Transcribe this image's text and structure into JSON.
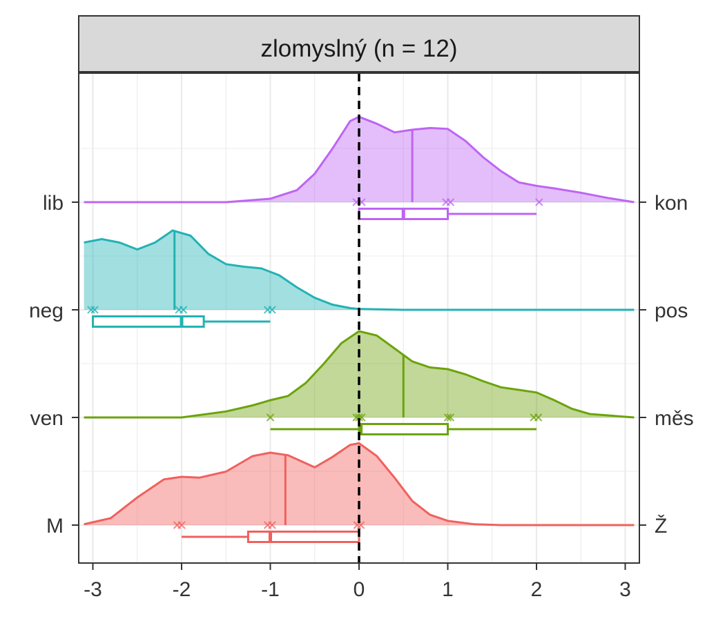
{
  "chart_data": {
    "type": "ridgeline-density-with-boxplots",
    "title": "zlomyslný (n = 12)",
    "xlabel": "",
    "ylabel": "",
    "xlim": [
      -3.1,
      3.1
    ],
    "x_ticks": [
      -3,
      -2,
      -1,
      0,
      1,
      2,
      3
    ],
    "x_tick_labels": [
      "-3",
      "-2",
      "-1",
      "0",
      "1",
      "2",
      "3"
    ],
    "reference_line_x": 0,
    "grid": true,
    "legend": "none",
    "series": [
      {
        "left_label": "M",
        "right_label": "Ž",
        "color": "#F0605D",
        "density": {
          "x": [
            -3.1,
            -2.8,
            -2.5,
            -2.2,
            -2.0,
            -1.8,
            -1.5,
            -1.2,
            -1.0,
            -0.8,
            -0.5,
            -0.3,
            -0.1,
            0.0,
            0.2,
            0.4,
            0.6,
            0.8,
            1.0,
            1.3,
            1.6,
            2.0,
            2.5,
            3.1
          ],
          "y": [
            0.01,
            0.08,
            0.32,
            0.53,
            0.56,
            0.55,
            0.62,
            0.8,
            0.84,
            0.81,
            0.67,
            0.79,
            0.93,
            0.95,
            0.8,
            0.55,
            0.28,
            0.12,
            0.05,
            0.01,
            0.0,
            0.0,
            0.0,
            0.0
          ]
        },
        "median": -0.83,
        "points": [
          -2.05,
          -2.0,
          -1.03,
          -0.98,
          -0.02,
          0.02
        ],
        "box": {
          "whisker_low": -2.0,
          "q1": -1.25,
          "median": -1.0,
          "q3": 0.0,
          "whisker_high": 0.0
        }
      },
      {
        "left_label": "ven",
        "right_label": "měs",
        "color": "#6BA30A",
        "density": {
          "x": [
            -3.1,
            -2.5,
            -2.0,
            -1.5,
            -1.2,
            -1.0,
            -0.8,
            -0.6,
            -0.4,
            -0.2,
            0.0,
            0.2,
            0.4,
            0.6,
            0.8,
            1.0,
            1.2,
            1.4,
            1.6,
            1.8,
            2.0,
            2.2,
            2.4,
            2.6,
            3.1
          ],
          "y": [
            0.0,
            0.0,
            0.0,
            0.07,
            0.14,
            0.2,
            0.25,
            0.4,
            0.62,
            0.86,
            1.0,
            0.95,
            0.8,
            0.65,
            0.58,
            0.56,
            0.5,
            0.42,
            0.35,
            0.32,
            0.29,
            0.2,
            0.1,
            0.04,
            0.0
          ]
        },
        "median": 0.5,
        "points": [
          -1.0,
          -0.03,
          0.0,
          0.03,
          1.0,
          1.03,
          1.97,
          2.02
        ],
        "box": {
          "whisker_low": -1.0,
          "q1": 0.0,
          "median": 0.02,
          "q3": 1.0,
          "whisker_high": 2.0
        }
      },
      {
        "left_label": "neg",
        "right_label": "pos",
        "color": "#22B2B4",
        "density": {
          "x": [
            -3.1,
            -2.9,
            -2.7,
            -2.5,
            -2.3,
            -2.1,
            -1.9,
            -1.7,
            -1.5,
            -1.3,
            -1.1,
            -0.9,
            -0.7,
            -0.5,
            -0.3,
            -0.1,
            0.0,
            0.5,
            1.0,
            3.1
          ],
          "y": [
            0.78,
            0.82,
            0.78,
            0.7,
            0.78,
            0.92,
            0.86,
            0.65,
            0.53,
            0.5,
            0.48,
            0.4,
            0.26,
            0.14,
            0.06,
            0.02,
            0.01,
            0.0,
            0.0,
            0.0
          ]
        },
        "median": -2.08,
        "points": [
          -3.02,
          -2.98,
          -2.03,
          -1.98,
          -1.03,
          -0.98
        ],
        "box": {
          "whisker_low": -3.0,
          "q1": -3.0,
          "median": -2.0,
          "q3": -1.75,
          "whisker_high": -1.0
        }
      },
      {
        "left_label": "lib",
        "right_label": "kon",
        "color": "#BE64F3",
        "density": {
          "x": [
            -3.1,
            -1.5,
            -1.0,
            -0.7,
            -0.5,
            -0.3,
            -0.1,
            0.0,
            0.2,
            0.4,
            0.6,
            0.8,
            1.0,
            1.2,
            1.4,
            1.6,
            1.8,
            2.0,
            2.2,
            2.5,
            2.8,
            3.1
          ],
          "y": [
            0.0,
            0.0,
            0.04,
            0.14,
            0.33,
            0.62,
            0.94,
            0.99,
            0.91,
            0.81,
            0.84,
            0.86,
            0.85,
            0.71,
            0.52,
            0.36,
            0.23,
            0.19,
            0.16,
            0.11,
            0.05,
            0.0
          ]
        },
        "median": 0.6,
        "points": [
          -0.03,
          0.03,
          0.98,
          1.03,
          2.03
        ],
        "box": {
          "whisker_low": 0.0,
          "q1": 0.0,
          "median": 0.5,
          "q3": 1.0,
          "whisker_high": 2.0
        }
      }
    ]
  }
}
